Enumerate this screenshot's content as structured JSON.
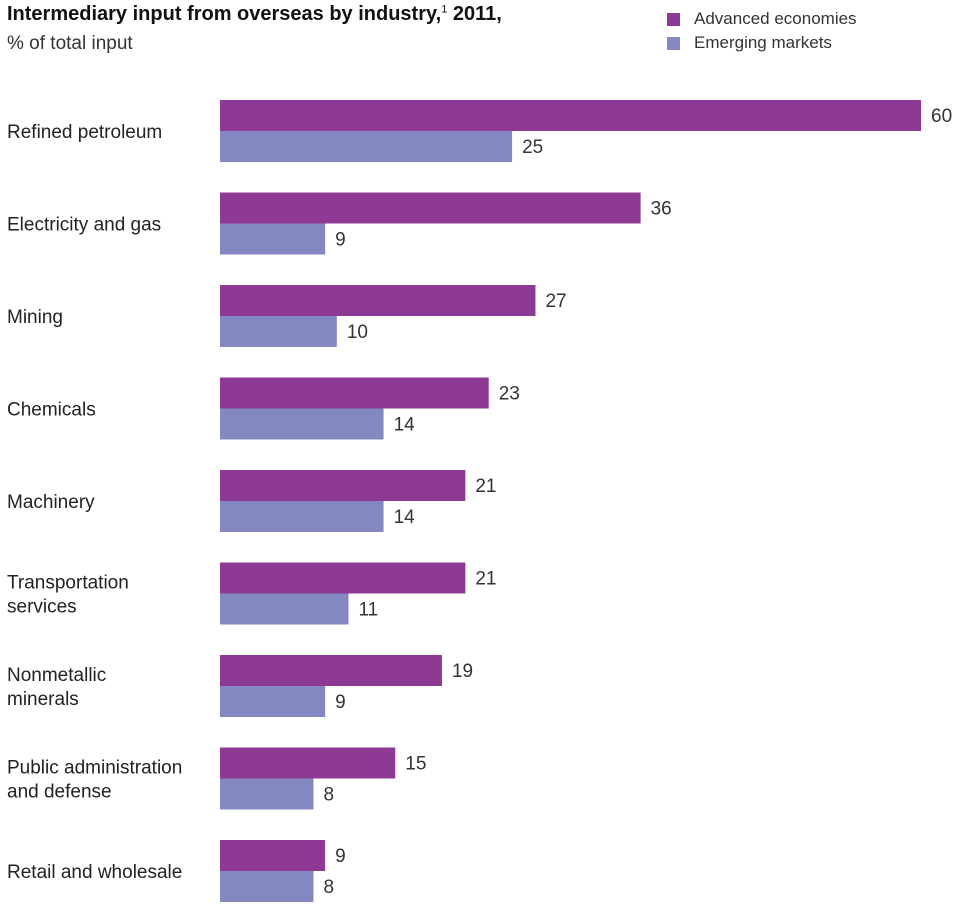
{
  "chart_data": {
    "type": "bar",
    "orientation": "horizontal",
    "title": "Intermediary input from overseas by industry,",
    "title_footnote": "1",
    "title_year": "2011,",
    "subtitle": "% of total input",
    "legend_position": "top-right",
    "grid": false,
    "xlim": [
      0,
      60
    ],
    "categories": [
      [
        "Refined petroleum"
      ],
      [
        "Electricity and gas"
      ],
      [
        "Mining"
      ],
      [
        "Chemicals"
      ],
      [
        "Machinery"
      ],
      [
        "Transportation",
        "services"
      ],
      [
        "Nonmetallic",
        "minerals"
      ],
      [
        "Public administration",
        "and defense"
      ],
      [
        "Retail and wholesale"
      ]
    ],
    "series": [
      {
        "name": "Advanced economies",
        "color": "#8e3a95",
        "values": [
          60,
          36,
          27,
          23,
          21,
          21,
          19,
          15,
          9
        ]
      },
      {
        "name": "Emerging markets",
        "color": "#8488c0",
        "values": [
          25,
          9,
          10,
          14,
          14,
          11,
          9,
          8,
          8
        ]
      }
    ]
  }
}
